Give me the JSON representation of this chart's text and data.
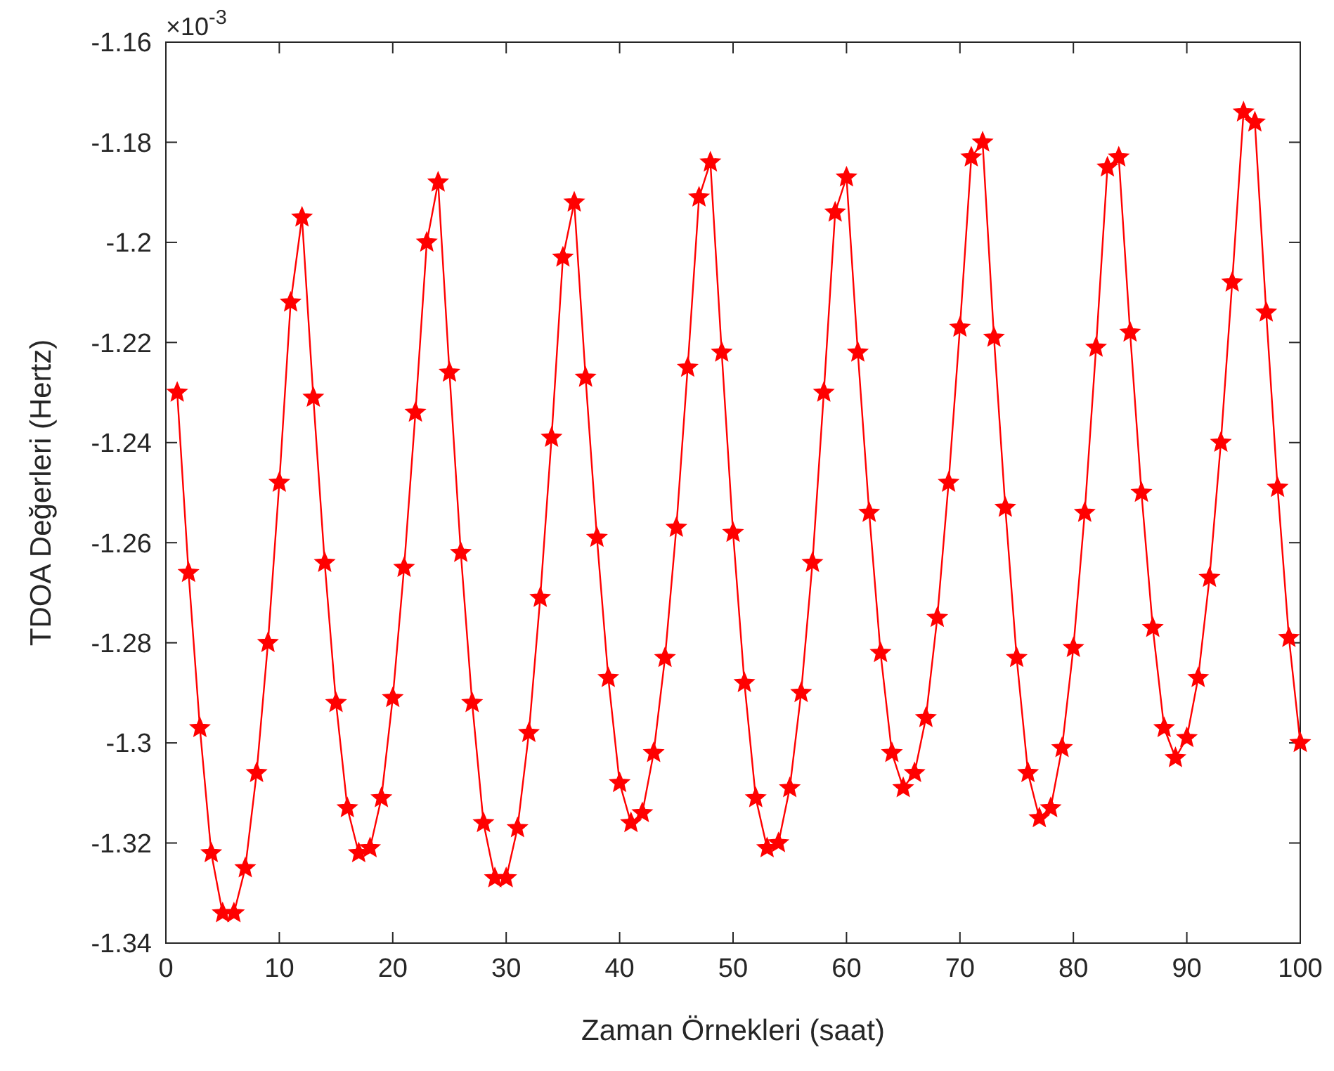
{
  "chart_data": {
    "type": "line",
    "xlabel": "Zaman Örnekleri (saat)",
    "ylabel": "TDOA Değerleri (Hertz)",
    "annotations": [
      "×10$^{-3}$"
    ],
    "xlim": [
      0,
      100
    ],
    "xticks": [
      0,
      10,
      20,
      30,
      40,
      50,
      60,
      70,
      80,
      90,
      100
    ],
    "ylim": [
      -1.34,
      -1.16
    ],
    "yticks": [
      -1.34,
      -1.32,
      -1.3,
      -1.28,
      -1.26,
      -1.24,
      -1.22,
      -1.2,
      -1.18,
      -1.16
    ],
    "grid": false,
    "marker": "star",
    "line_style": "solid",
    "x": [
      1,
      2,
      3,
      4,
      5,
      6,
      7,
      8,
      9,
      10,
      11,
      12,
      13,
      14,
      15,
      16,
      17,
      18,
      19,
      20,
      21,
      22,
      23,
      24,
      25,
      26,
      27,
      28,
      29,
      30,
      31,
      32,
      33,
      34,
      35,
      36,
      37,
      38,
      39,
      40,
      41,
      42,
      43,
      44,
      45,
      46,
      47,
      48,
      49,
      50,
      51,
      52,
      53,
      54,
      55,
      56,
      57,
      58,
      59,
      60,
      61,
      62,
      63,
      64,
      65,
      66,
      67,
      68,
      69,
      70,
      71,
      72,
      73,
      74,
      75,
      76,
      77,
      78,
      79,
      80,
      81,
      82,
      83,
      84,
      85,
      86,
      87,
      88,
      89,
      90,
      91,
      92,
      93,
      94,
      95,
      96,
      97,
      98,
      99,
      100
    ],
    "series": [
      {
        "color": "#ff0000",
        "values": [
          -1.23,
          -1.266,
          -1.297,
          -1.322,
          -1.334,
          -1.334,
          -1.325,
          -1.306,
          -1.28,
          -1.248,
          -1.212,
          -1.195,
          -1.231,
          -1.264,
          -1.292,
          -1.313,
          -1.322,
          -1.321,
          -1.311,
          -1.291,
          -1.265,
          -1.234,
          -1.2,
          -1.188,
          -1.226,
          -1.262,
          -1.292,
          -1.316,
          -1.327,
          -1.327,
          -1.317,
          -1.298,
          -1.271,
          -1.239,
          -1.203,
          -1.192,
          -1.227,
          -1.259,
          -1.287,
          -1.308,
          -1.316,
          -1.314,
          -1.302,
          -1.283,
          -1.257,
          -1.225,
          -1.191,
          -1.184,
          -1.222,
          -1.258,
          -1.288,
          -1.311,
          -1.321,
          -1.32,
          -1.309,
          -1.29,
          -1.264,
          -1.23,
          -1.194,
          -1.187,
          -1.222,
          -1.254,
          -1.282,
          -1.302,
          -1.309,
          -1.306,
          -1.295,
          -1.275,
          -1.248,
          -1.217,
          -1.183,
          -1.18,
          -1.219,
          -1.253,
          -1.283,
          -1.306,
          -1.315,
          -1.313,
          -1.301,
          -1.281,
          -1.254,
          -1.221,
          -1.185,
          -1.183,
          -1.218,
          -1.25,
          -1.277,
          -1.297,
          -1.303,
          -1.299,
          -1.287,
          -1.267,
          -1.24,
          -1.208,
          -1.174,
          -1.176,
          -1.214,
          -1.249,
          -1.279,
          -1.3
        ]
      }
    ]
  }
}
